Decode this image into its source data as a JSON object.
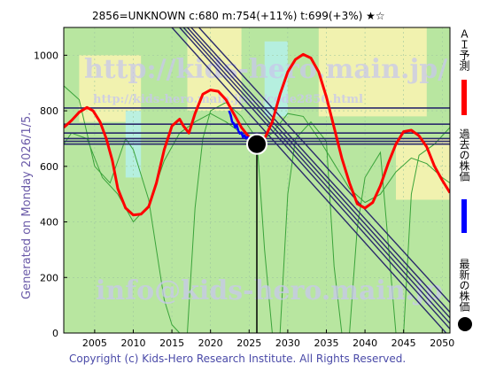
{
  "header": {
    "title": "2856=UNKNOWN    c:680  m:754(+11%)  t:699(+3%)  ★☆"
  },
  "side_text": "Generated on Monday 2026/1/5.",
  "copyright": "Copyright (c) Kids-Hero Research Institute. All Rights Reserved.",
  "watermarks": {
    "site": "http://kids-hero.main.jp/",
    "page": "http://kids-hero.main.jp/.../code2856.html",
    "email": "info@kids-hero.main.jp"
  },
  "legend": {
    "ai_label": "ＡＩ予測",
    "past_label": "過去の株価",
    "latest_label": "最新の株価"
  },
  "colors": {
    "ai_line": "#ff0000",
    "past_line": "#0000ff",
    "latest_dot": "#000000",
    "green_band": "#b8e6a0",
    "yellow_band": "#f7f3b0",
    "cyan_band": "#b5efe6",
    "channel": "#2b2b6b"
  },
  "chart_data": {
    "type": "line",
    "xlim": [
      2001,
      2051
    ],
    "ylim": [
      0,
      1100
    ],
    "xticks": [
      2005,
      2010,
      2015,
      2020,
      2025,
      2030,
      2035,
      2040,
      2045,
      2050
    ],
    "yticks": [
      0,
      200,
      400,
      600,
      800,
      1000
    ],
    "grid": true,
    "series": [
      {
        "name": "ＡＩ予測",
        "color": "#ff0000",
        "points": [
          [
            2001,
            740
          ],
          [
            2002,
            765
          ],
          [
            2003,
            795
          ],
          [
            2004,
            812
          ],
          [
            2004.8,
            800
          ],
          [
            2005.7,
            760
          ],
          [
            2006.5,
            700
          ],
          [
            2007.3,
            620
          ],
          [
            2008,
            520
          ],
          [
            2009,
            450
          ],
          [
            2010,
            425
          ],
          [
            2011,
            428
          ],
          [
            2012,
            455
          ],
          [
            2013,
            540
          ],
          [
            2014,
            660
          ],
          [
            2015,
            745
          ],
          [
            2016,
            770
          ],
          [
            2016.5,
            745
          ],
          [
            2017.2,
            720
          ],
          [
            2018,
            790
          ],
          [
            2019,
            860
          ],
          [
            2020,
            875
          ],
          [
            2021,
            870
          ],
          [
            2022,
            840
          ],
          [
            2023,
            790
          ],
          [
            2024,
            740
          ],
          [
            2025,
            705
          ],
          [
            2026,
            680
          ],
          [
            2027,
            700
          ],
          [
            2028,
            760
          ],
          [
            2029,
            860
          ],
          [
            2030,
            940
          ],
          [
            2031,
            985
          ],
          [
            2032,
            1003
          ],
          [
            2033,
            990
          ],
          [
            2034,
            940
          ],
          [
            2035,
            850
          ],
          [
            2036,
            740
          ],
          [
            2037,
            630
          ],
          [
            2038,
            540
          ],
          [
            2039,
            465
          ],
          [
            2040,
            450
          ],
          [
            2041,
            470
          ],
          [
            2042,
            530
          ],
          [
            2043,
            610
          ],
          [
            2044,
            680
          ],
          [
            2045,
            725
          ],
          [
            2046,
            730
          ],
          [
            2047,
            710
          ],
          [
            2048,
            670
          ],
          [
            2049,
            600
          ],
          [
            2050,
            550
          ],
          [
            2051,
            505
          ]
        ]
      },
      {
        "name": "過去の株価",
        "color": "#0000ff",
        "points": [
          [
            2022.4,
            800
          ],
          [
            2022.6,
            785
          ],
          [
            2022.8,
            760
          ],
          [
            2023.0,
            755
          ],
          [
            2023.2,
            740
          ],
          [
            2023.4,
            748
          ],
          [
            2023.6,
            728
          ],
          [
            2023.8,
            718
          ],
          [
            2024.0,
            722
          ],
          [
            2024.2,
            705
          ],
          [
            2024.4,
            712
          ],
          [
            2024.6,
            700
          ],
          [
            2024.8,
            705
          ],
          [
            2025.0,
            692
          ],
          [
            2025.2,
            698
          ],
          [
            2025.4,
            690
          ],
          [
            2025.6,
            688
          ],
          [
            2025.8,
            684
          ],
          [
            2026.0,
            680
          ]
        ]
      }
    ],
    "latest": {
      "x": 2026,
      "y": 680
    },
    "horizontal_levels": [
      810,
      752,
      720,
      700,
      690,
      680
    ],
    "channel_lines": [
      [
        [
          2015,
          1100
        ],
        [
          2050.5,
          0
        ]
      ],
      [
        [
          2016,
          1100
        ],
        [
          2051,
          15
        ]
      ],
      [
        [
          2016.5,
          1100
        ],
        [
          2051,
          35
        ]
      ],
      [
        [
          2017,
          1100
        ],
        [
          2051,
          55
        ]
      ],
      [
        [
          2017.5,
          1100
        ],
        [
          2051,
          75
        ]
      ],
      [
        [
          2018.5,
          1100
        ],
        [
          2051,
          110
        ]
      ]
    ],
    "green_curves": [
      {
        "points": [
          [
            2001,
            890
          ],
          [
            2003,
            840
          ],
          [
            2005,
            600
          ],
          [
            2007,
            540
          ],
          [
            2009,
            700
          ],
          [
            2010,
            660
          ],
          [
            2012,
            480
          ],
          [
            2013,
            300
          ],
          [
            2014,
            120
          ],
          [
            2015,
            30
          ],
          [
            2016,
            0
          ],
          [
            2017,
            0
          ],
          [
            2018,
            450
          ],
          [
            2019,
            700
          ],
          [
            2020,
            800
          ],
          [
            2022,
            830
          ],
          [
            2024,
            780
          ],
          [
            2026,
            700
          ],
          [
            2027,
            300
          ],
          [
            2028,
            0
          ],
          [
            2029,
            0
          ],
          [
            2030,
            500
          ],
          [
            2031,
            700
          ],
          [
            2033,
            760
          ],
          [
            2035,
            690
          ],
          [
            2036,
            240
          ],
          [
            2037,
            0
          ],
          [
            2038,
            0
          ],
          [
            2039,
            380
          ],
          [
            2040,
            560
          ],
          [
            2042,
            650
          ],
          [
            2044,
            0
          ],
          [
            2045,
            0
          ],
          [
            2046,
            500
          ],
          [
            2047,
            640
          ],
          [
            2049,
            680
          ],
          [
            2051,
            740
          ]
        ]
      },
      {
        "points": [
          [
            2001,
            680
          ],
          [
            2002,
            720
          ],
          [
            2004,
            700
          ],
          [
            2006,
            560
          ],
          [
            2008,
            500
          ],
          [
            2010,
            400
          ],
          [
            2012,
            460
          ],
          [
            2014,
            620
          ],
          [
            2016,
            720
          ],
          [
            2018,
            760
          ],
          [
            2020,
            790
          ],
          [
            2022,
            760
          ],
          [
            2024,
            720
          ],
          [
            2026,
            680
          ],
          [
            2028,
            720
          ],
          [
            2030,
            790
          ],
          [
            2032,
            780
          ],
          [
            2034,
            700
          ],
          [
            2036,
            610
          ],
          [
            2038,
            520
          ],
          [
            2040,
            470
          ],
          [
            2042,
            500
          ],
          [
            2044,
            580
          ],
          [
            2046,
            630
          ],
          [
            2048,
            610
          ],
          [
            2050,
            560
          ],
          [
            2051,
            540
          ]
        ]
      }
    ],
    "bands": [
      {
        "color": "green",
        "x": [
          2001,
          2051
        ],
        "y_top": [
          1100,
          1100
        ],
        "y_bot": [
          0,
          0
        ]
      },
      {
        "color": "yellow",
        "x": [
          2017,
          2024
        ],
        "y_top": [
          1100,
          1100
        ],
        "y_bot": [
          800,
          800
        ]
      },
      {
        "color": "yellow",
        "x": [
          2003,
          2011
        ],
        "y_top": [
          1000,
          1000
        ],
        "y_bot": [
          760,
          760
        ]
      },
      {
        "color": "yellow",
        "x": [
          2034,
          2048
        ],
        "y_top": [
          1100,
          1100
        ],
        "y_bot": [
          780,
          780
        ]
      },
      {
        "color": "yellow",
        "x": [
          2044,
          2051
        ],
        "y_top": [
          700,
          700
        ],
        "y_bot": [
          480,
          480
        ]
      },
      {
        "color": "cyan",
        "x": [
          2009,
          2011
        ],
        "y_top": [
          800,
          800
        ],
        "y_bot": [
          560,
          560
        ]
      },
      {
        "color": "cyan",
        "x": [
          2027,
          2030
        ],
        "y_top": [
          1050,
          1050
        ],
        "y_bot": [
          780,
          780
        ]
      }
    ]
  }
}
